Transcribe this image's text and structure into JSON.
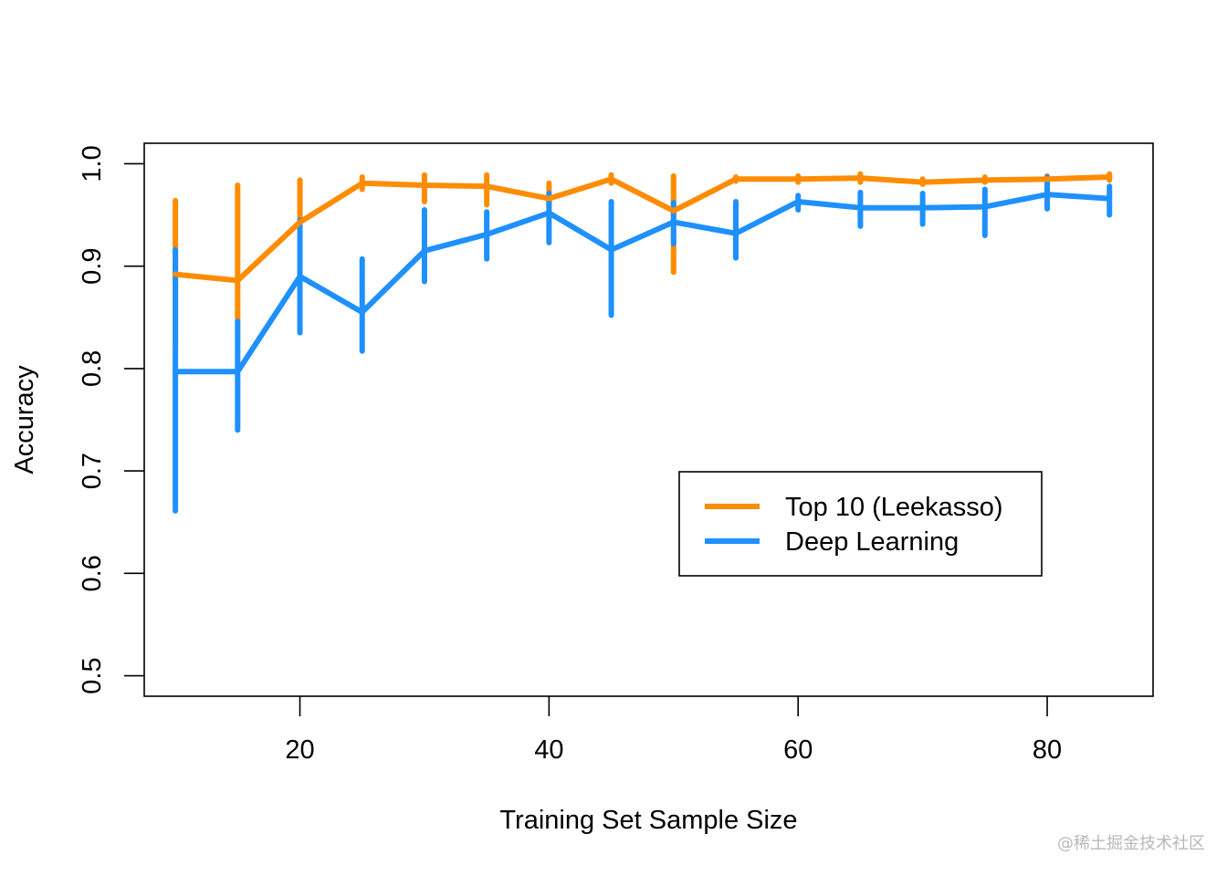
{
  "chart_data": {
    "type": "line",
    "title": "",
    "xlabel": "Training Set Sample Size",
    "ylabel": "Accuracy",
    "xlim": [
      7.5,
      88.5
    ],
    "ylim": [
      0.48,
      1.02
    ],
    "xticks": [
      20,
      40,
      60,
      80
    ],
    "xtick_labels": [
      "20",
      "40",
      "60",
      "80"
    ],
    "yticks": [
      0.5,
      0.6,
      0.7,
      0.8,
      0.9,
      1.0
    ],
    "ytick_labels": [
      "0.5",
      "0.6",
      "0.7",
      "0.8",
      "0.9",
      "1.0"
    ],
    "grid": false,
    "legend_position": "bottom-right",
    "x": [
      10,
      15,
      20,
      25,
      30,
      35,
      40,
      45,
      50,
      55,
      60,
      65,
      70,
      75,
      80,
      85
    ],
    "series": [
      {
        "name": "Top 10 (Leekasso)",
        "color": "#ff8c00",
        "values": [
          0.892,
          0.886,
          0.943,
          0.981,
          0.979,
          0.978,
          0.966,
          0.985,
          0.954,
          0.985,
          0.985,
          0.986,
          0.982,
          0.984,
          0.985,
          0.987
        ],
        "error_low": [
          0.822,
          0.847,
          0.902,
          0.975,
          0.963,
          0.96,
          0.958,
          0.981,
          0.894,
          0.983,
          0.982,
          0.982,
          0.98,
          0.982,
          0.983,
          0.984
        ],
        "error_high": [
          0.964,
          0.979,
          0.984,
          0.987,
          0.989,
          0.989,
          0.981,
          0.989,
          0.988,
          0.987,
          0.988,
          0.99,
          0.985,
          0.987,
          0.988,
          0.99
        ]
      },
      {
        "name": "Deep Learning",
        "color": "#1e90ff",
        "values": [
          0.797,
          0.797,
          0.89,
          0.855,
          0.915,
          0.931,
          0.952,
          0.916,
          0.943,
          0.932,
          0.963,
          0.957,
          0.957,
          0.958,
          0.97,
          0.966
        ],
        "error_low": [
          0.661,
          0.74,
          0.835,
          0.817,
          0.885,
          0.907,
          0.923,
          0.852,
          0.922,
          0.908,
          0.955,
          0.939,
          0.941,
          0.93,
          0.956,
          0.95
        ],
        "error_high": [
          0.916,
          0.846,
          0.945,
          0.907,
          0.955,
          0.953,
          0.971,
          0.963,
          0.962,
          0.963,
          0.969,
          0.972,
          0.971,
          0.975,
          0.987,
          0.978
        ]
      }
    ]
  },
  "watermark": "@稀土掘金技术社区"
}
